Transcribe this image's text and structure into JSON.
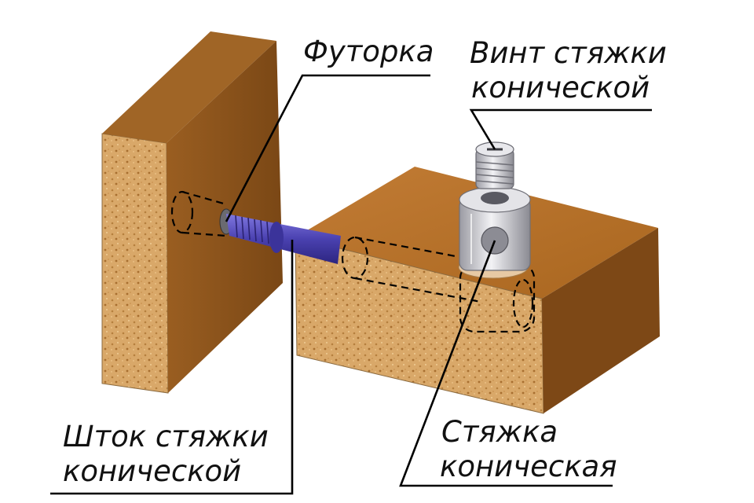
{
  "labels": {
    "futorka": "Футорка",
    "screw_line1": "Винт стяжки",
    "screw_line2": "конической",
    "rod_line1": "Шток стяжки",
    "rod_line2": "конической",
    "tie_line1": "Стяжка",
    "tie_line2": "коническая"
  },
  "colors": {
    "wood_top": "#b8732e",
    "wood_face": "#8d541d",
    "chipboard": "#d8a868",
    "rod": "#5148b8",
    "metal": "#cfcfd4",
    "leader": "#000000"
  },
  "icons": {
    "rod": "threaded-rod-icon",
    "screw": "set-screw-icon",
    "barrel": "cam-barrel-icon"
  }
}
